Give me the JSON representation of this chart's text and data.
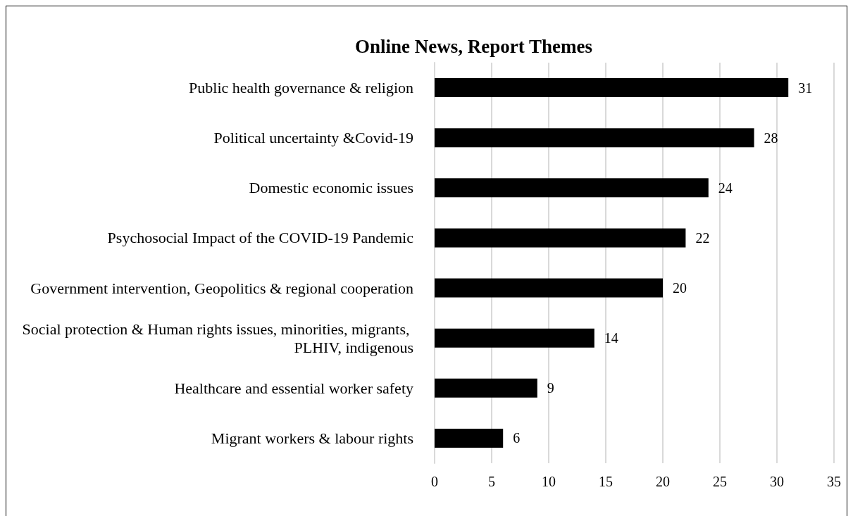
{
  "chart_data": {
    "type": "bar",
    "orientation": "horizontal",
    "title": "Online News, Report Themes",
    "categories": [
      "Public health governance & religion",
      "Political uncertainty &Covid-19",
      "Domestic economic issues",
      "Psychosocial Impact of the COVID-19 Pandemic",
      "Government intervention, Geopolitics & regional cooperation",
      "Social protection & Human rights issues, minorities, migrants, PLHIV, indigenous",
      "Healthcare and essential worker safety",
      "Migrant workers & labour rights"
    ],
    "values": [
      31,
      28,
      24,
      22,
      20,
      14,
      9,
      6
    ],
    "color": "#000000",
    "xlim": [
      0,
      35
    ],
    "xticks": [
      0,
      5,
      10,
      15,
      20,
      25,
      30,
      35
    ],
    "grid": "x",
    "data_labels": true
  }
}
